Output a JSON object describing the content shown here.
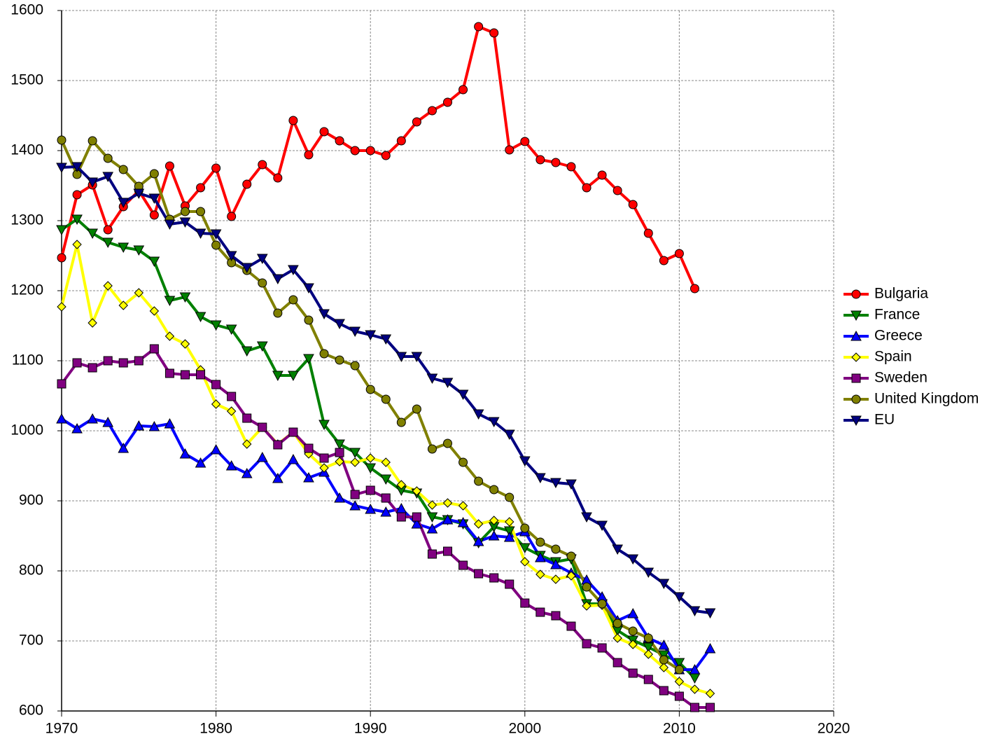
{
  "chart_data": {
    "type": "line",
    "x": [
      1970,
      1971,
      1972,
      1973,
      1974,
      1975,
      1976,
      1977,
      1978,
      1979,
      1980,
      1981,
      1982,
      1983,
      1984,
      1985,
      1986,
      1987,
      1988,
      1989,
      1990,
      1991,
      1992,
      1993,
      1994,
      1995,
      1996,
      1997,
      1998,
      1999,
      2000,
      2001,
      2002,
      2003,
      2004,
      2005,
      2006,
      2007,
      2008,
      2009,
      2010,
      2011,
      2012
    ],
    "xlim": [
      1970,
      2020
    ],
    "xticks": [
      1970,
      1980,
      1990,
      2000,
      2010,
      2020
    ],
    "ylim": [
      600,
      1600
    ],
    "yticks": [
      600,
      700,
      800,
      900,
      1000,
      1100,
      1200,
      1300,
      1400,
      1500,
      1600
    ],
    "grid": true,
    "legend": "right",
    "series": [
      {
        "name": "Bulgaria",
        "color": "#ff0000",
        "marker": "circle",
        "values": [
          1247,
          1337,
          1351,
          1287,
          1320,
          1343,
          1308,
          1378,
          1321,
          1347,
          1375,
          1306,
          1352,
          1380,
          1361,
          1443,
          1394,
          1427,
          1414,
          1400,
          1400,
          1393,
          1414,
          1441,
          1457,
          1469,
          1487,
          1577,
          1568,
          1401,
          1413,
          1387,
          1383,
          1377,
          1347,
          1365,
          1343,
          1323,
          1282,
          1243,
          1253,
          1203,
          null
        ]
      },
      {
        "name": "France",
        "color": "#008000",
        "marker": "triangle-down",
        "values": [
          1287,
          1302,
          1282,
          1269,
          1262,
          1258,
          1242,
          1186,
          1191,
          1163,
          1151,
          1145,
          1114,
          1121,
          1079,
          1079,
          1103,
          1009,
          981,
          969,
          947,
          931,
          915,
          911,
          877,
          873,
          867,
          840,
          863,
          857,
          833,
          822,
          813,
          817,
          753,
          753,
          715,
          701,
          691,
          680,
          669,
          647,
          null
        ]
      },
      {
        "name": "Greece",
        "color": "#0000ff",
        "marker": "triangle-up",
        "values": [
          1017,
          1003,
          1017,
          1012,
          975,
          1007,
          1006,
          1010,
          967,
          954,
          973,
          950,
          939,
          962,
          932,
          959,
          933,
          941,
          904,
          893,
          888,
          884,
          889,
          867,
          860,
          873,
          869,
          842,
          850,
          848,
          856,
          819,
          809,
          797,
          787,
          763,
          729,
          739,
          704,
          694,
          659,
          659,
          689
        ]
      },
      {
        "name": "Spain",
        "color": "#ffff00",
        "marker": "diamond",
        "values": [
          1177,
          1266,
          1154,
          1207,
          1179,
          1197,
          1171,
          1135,
          1124,
          1087,
          1038,
          1028,
          981,
          1005,
          981,
          998,
          967,
          947,
          956,
          955,
          961,
          955,
          923,
          914,
          894,
          897,
          893,
          867,
          872,
          870,
          813,
          795,
          788,
          793,
          750,
          751,
          704,
          695,
          681,
          662,
          642,
          631,
          625
        ]
      },
      {
        "name": "Sweden",
        "color": "#800080",
        "marker": "square",
        "values": [
          1067,
          1097,
          1090,
          1100,
          1097,
          1100,
          1117,
          1082,
          1080,
          1080,
          1066,
          1049,
          1018,
          1005,
          980,
          998,
          975,
          961,
          969,
          909,
          915,
          904,
          877,
          877,
          824,
          828,
          808,
          796,
          790,
          781,
          754,
          741,
          736,
          721,
          696,
          690,
          669,
          654,
          645,
          629,
          621,
          605,
          605
        ]
      },
      {
        "name": "United Kingdom",
        "color": "#808000",
        "marker": "circle",
        "values": [
          1415,
          1366,
          1414,
          1389,
          1373,
          1349,
          1367,
          1302,
          1313,
          1313,
          1265,
          1240,
          1229,
          1211,
          1168,
          1187,
          1158,
          1110,
          1101,
          1093,
          1059,
          1045,
          1012,
          1031,
          974,
          982,
          955,
          928,
          916,
          905,
          861,
          841,
          831,
          821,
          777,
          753,
          725,
          714,
          704,
          673,
          659,
          null,
          null
        ]
      },
      {
        "name": "EU",
        "color": "#000080",
        "marker": "triangle-down",
        "values": [
          1376,
          1377,
          1355,
          1363,
          1326,
          1339,
          1332,
          1295,
          1298,
          1282,
          1281,
          1250,
          1233,
          1246,
          1217,
          1230,
          1204,
          1167,
          1153,
          1142,
          1137,
          1131,
          1106,
          1106,
          1075,
          1069,
          1052,
          1024,
          1013,
          995,
          957,
          933,
          926,
          924,
          877,
          865,
          831,
          817,
          798,
          782,
          763,
          743,
          740
        ]
      }
    ]
  }
}
